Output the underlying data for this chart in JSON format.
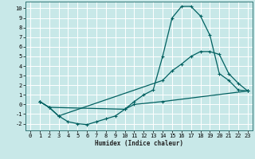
{
  "xlabel": "Humidex (Indice chaleur)",
  "bg_color": "#c8e8e8",
  "grid_color": "#ffffff",
  "line_color": "#006060",
  "xlim": [
    -0.5,
    23.5
  ],
  "ylim": [
    -2.7,
    10.7
  ],
  "xticks": [
    0,
    1,
    2,
    3,
    4,
    5,
    6,
    7,
    8,
    9,
    10,
    11,
    12,
    13,
    14,
    15,
    16,
    17,
    18,
    19,
    20,
    21,
    22,
    23
  ],
  "yticks": [
    -2,
    -1,
    0,
    1,
    2,
    3,
    4,
    5,
    6,
    7,
    8,
    9,
    10
  ],
  "line1_x": [
    1,
    2,
    3,
    4,
    5,
    6,
    7,
    8,
    9,
    10,
    11,
    12,
    13,
    14,
    15,
    16,
    17,
    18,
    19,
    20,
    21,
    22,
    23
  ],
  "line1_y": [
    0.3,
    -0.3,
    -1.2,
    -1.8,
    -2.0,
    -2.1,
    -1.8,
    -1.5,
    -1.2,
    -0.5,
    0.3,
    1.0,
    1.5,
    5.0,
    9.0,
    10.2,
    10.2,
    9.2,
    7.2,
    3.2,
    2.5,
    1.5,
    1.4
  ],
  "line2_x": [
    1,
    2,
    3,
    14,
    15,
    16,
    17,
    18,
    19,
    20,
    21,
    22,
    23
  ],
  "line2_y": [
    0.3,
    -0.3,
    -1.2,
    2.5,
    3.5,
    4.2,
    5.0,
    5.5,
    5.5,
    5.2,
    3.2,
    2.2,
    1.4
  ],
  "line3_x": [
    1,
    2,
    10,
    11,
    14,
    23
  ],
  "line3_y": [
    0.3,
    -0.3,
    -0.5,
    0.0,
    0.3,
    1.4
  ],
  "tick_fontsize": 5,
  "xlabel_fontsize": 5.5
}
